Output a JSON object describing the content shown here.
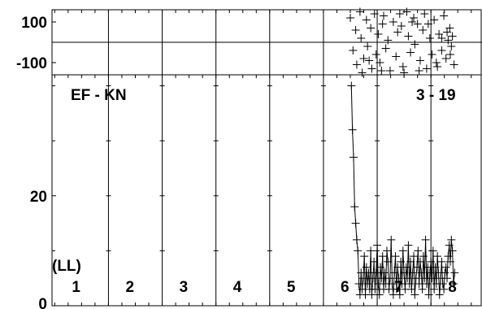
{
  "chart_data": {
    "type": "scatter",
    "upper_panel": {
      "y_ticks": [
        100,
        -100
      ],
      "ylim": [
        -160,
        160
      ],
      "x_range": [
        0.45,
        8.45
      ],
      "reference_line_y": 0,
      "points": [
        [
          6.0,
          120
        ],
        [
          6.05,
          -40
        ],
        [
          6.1,
          60
        ],
        [
          6.12,
          -110
        ],
        [
          6.18,
          150
        ],
        [
          6.2,
          20
        ],
        [
          6.25,
          -80
        ],
        [
          6.3,
          110
        ],
        [
          6.32,
          -20
        ],
        [
          6.38,
          70
        ],
        [
          6.4,
          -130
        ],
        [
          6.45,
          140
        ],
        [
          6.48,
          -60
        ],
        [
          6.52,
          40
        ],
        [
          6.55,
          -100
        ],
        [
          6.6,
          90
        ],
        [
          6.62,
          130
        ],
        [
          6.66,
          -30
        ],
        [
          6.7,
          10
        ],
        [
          6.74,
          -140
        ],
        [
          6.8,
          100
        ],
        [
          6.85,
          -70
        ],
        [
          6.88,
          50
        ],
        [
          6.92,
          140
        ],
        [
          6.98,
          -120
        ],
        [
          7.05,
          150
        ],
        [
          7.08,
          30
        ],
        [
          7.12,
          -50
        ],
        [
          7.18,
          120
        ],
        [
          7.2,
          -10
        ],
        [
          7.25,
          90
        ],
        [
          7.3,
          -90
        ],
        [
          7.35,
          60
        ],
        [
          7.38,
          140
        ],
        [
          7.42,
          -130
        ],
        [
          7.48,
          20
        ],
        [
          7.52,
          -60
        ],
        [
          7.56,
          110
        ],
        [
          7.6,
          -100
        ],
        [
          7.65,
          40
        ],
        [
          7.7,
          -40
        ],
        [
          7.74,
          130
        ],
        [
          7.78,
          -80
        ],
        [
          7.82,
          10
        ],
        [
          7.85,
          70
        ],
        [
          7.88,
          -20
        ],
        [
          7.9,
          30
        ],
        [
          7.93,
          -110
        ],
        [
          6.22,
          -150
        ],
        [
          6.95,
          80
        ],
        [
          7.0,
          -150
        ],
        [
          7.15,
          100
        ],
        [
          7.45,
          90
        ],
        [
          7.62,
          -120
        ],
        [
          7.8,
          50
        ],
        [
          6.35,
          -90
        ],
        [
          6.58,
          -140
        ],
        [
          7.28,
          -140
        ],
        [
          7.7,
          20
        ],
        [
          7.86,
          -60
        ]
      ]
    },
    "lower_panel": {
      "y_ticks": [
        20,
        0
      ],
      "ylim": [
        0,
        42
      ],
      "x_range": [
        0.45,
        8.45
      ],
      "top_left_label": "EF - KN",
      "top_right_label": "3 - 19",
      "unit_label": "(LL)",
      "x_segment_labels": [
        "1",
        "2",
        "3",
        "4",
        "5",
        "6",
        "7",
        "8"
      ],
      "series": [
        {
          "x": [
            6.02,
            6.04,
            6.06,
            6.08,
            6.1,
            6.12,
            6.14,
            6.16,
            6.18,
            6.2,
            6.22,
            6.24,
            6.26,
            6.28,
            6.3,
            6.32,
            6.34,
            6.36,
            6.38,
            6.4,
            6.42,
            6.44,
            6.46,
            6.48,
            6.5,
            6.52,
            6.54,
            6.56,
            6.58,
            6.6,
            6.62,
            6.64,
            6.66,
            6.68,
            6.7,
            6.72,
            6.74,
            6.76,
            6.78,
            6.8,
            6.82,
            6.84,
            6.86,
            6.88,
            6.9,
            6.92,
            6.94,
            6.96,
            6.98,
            7.0,
            7.02,
            7.04,
            7.06,
            7.08,
            7.1,
            7.12,
            7.14,
            7.16,
            7.18,
            7.2,
            7.22,
            7.24,
            7.26,
            7.28,
            7.3,
            7.32,
            7.34,
            7.36,
            7.38,
            7.4,
            7.42,
            7.44,
            7.46,
            7.48,
            7.5,
            7.52,
            7.54,
            7.56,
            7.58,
            7.6,
            7.62,
            7.64,
            7.66,
            7.68,
            7.7,
            7.72,
            7.74,
            7.76,
            7.78,
            7.8,
            7.82,
            7.84,
            7.86,
            7.88,
            7.9,
            7.92,
            7.94
          ],
          "y": [
            40,
            32,
            27,
            18,
            15,
            12,
            10,
            4,
            2,
            6,
            3,
            5,
            9,
            2,
            7,
            4,
            6,
            3,
            10,
            2,
            5,
            8,
            3,
            6,
            11,
            4,
            2,
            7,
            5,
            9,
            3,
            6,
            4,
            10,
            8,
            3,
            5,
            12,
            4,
            2,
            6,
            9,
            3,
            7,
            5,
            2,
            8,
            4,
            10,
            6,
            3,
            7,
            5,
            11,
            4,
            8,
            3,
            6,
            9,
            2,
            5,
            7,
            10,
            4,
            8,
            6,
            3,
            9,
            5,
            12,
            4,
            7,
            2,
            6,
            8,
            5,
            10,
            3,
            7,
            4,
            9,
            6,
            2,
            5,
            8,
            4,
            3,
            6,
            7,
            5,
            9,
            11,
            8,
            12,
            10,
            4,
            6
          ]
        }
      ]
    }
  }
}
